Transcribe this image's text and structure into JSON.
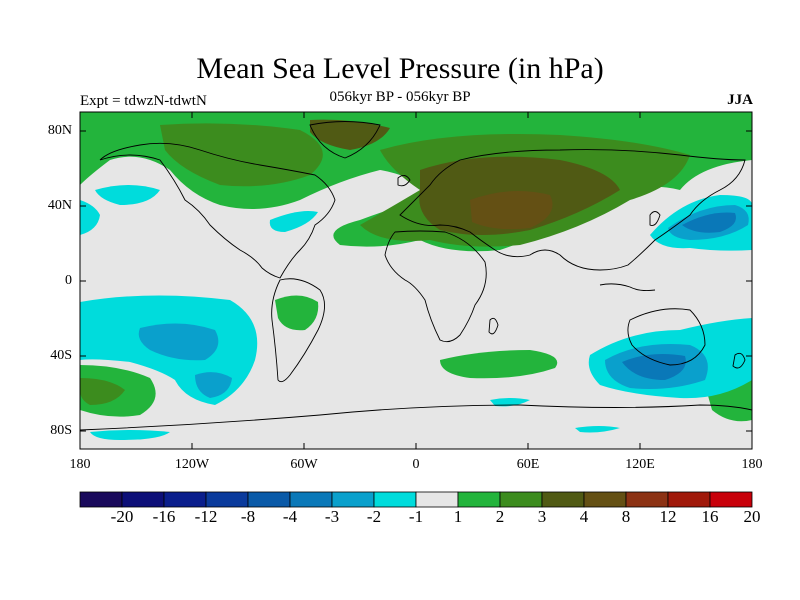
{
  "title": "Mean Sea Level Pressure (in hPa)",
  "subtitle": "056kyr BP - 056kyr BP",
  "experiment": "Expt = tdwzN-tdwtN",
  "season": "JJA",
  "latitude_labels": [
    "80N",
    "40N",
    "0",
    "40S",
    "80S"
  ],
  "longitude_labels": [
    "180",
    "120W",
    "60W",
    "0",
    "60E",
    "120E",
    "180"
  ],
  "colorbar": {
    "labels": [
      "-20",
      "-16",
      "-12",
      "-8",
      "-4",
      "-3",
      "-2",
      "-1",
      "1",
      "2",
      "3",
      "4",
      "8",
      "12",
      "16",
      "20"
    ],
    "colors": [
      "#1a0a5c",
      "#0d0f78",
      "#0a1e8c",
      "#0a3a9c",
      "#0a5aa8",
      "#0a78b8",
      "#0aa0cc",
      "#00dcdc",
      "#e6e6e6",
      "#23b43c",
      "#3c8c1e",
      "#505a14",
      "#645014",
      "#8c3214",
      "#a0190a",
      "#c8000a"
    ]
  },
  "colors": {
    "background": "#e6e6e6",
    "positive_1": "#23b43c",
    "positive_2": "#3c8c1e",
    "positive_3": "#505a14",
    "positive_4": "#645014",
    "negative_1": "#00dcdc",
    "negative_2": "#0aa0cc",
    "negative_3": "#0a78b8",
    "negative_4": "#0a5aa8"
  }
}
